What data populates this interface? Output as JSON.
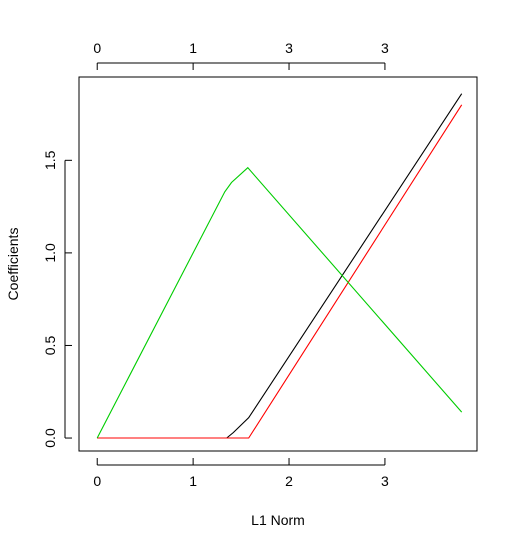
{
  "chart_data": {
    "type": "line",
    "title": "",
    "xlabel": "L1 Norm",
    "ylabel": "Coefficients",
    "xlim": [
      -0.19,
      3.96
    ],
    "ylim": [
      -0.07,
      1.95
    ],
    "x_ticks": [
      0,
      1,
      2,
      3
    ],
    "x_tick_labels": [
      "0",
      "1",
      "2",
      "3"
    ],
    "y_ticks": [
      0.0,
      0.5,
      1.0,
      1.5
    ],
    "y_tick_labels": [
      "0.0",
      "0.5",
      "1.0",
      "1.5"
    ],
    "top_axis": {
      "ticks": [
        0,
        1,
        2,
        3
      ],
      "labels": [
        "0",
        "1",
        "3",
        "3"
      ]
    },
    "grid": false,
    "legend": "none",
    "series": [
      {
        "color": "#000000",
        "points": [
          [
            0.0,
            0.0
          ],
          [
            1.35,
            0.0
          ],
          [
            1.42,
            0.03
          ],
          [
            1.58,
            0.11
          ],
          [
            3.8,
            1.86
          ]
        ]
      },
      {
        "color": "#ff0000",
        "points": [
          [
            0.0,
            0.0
          ],
          [
            1.58,
            0.0
          ],
          [
            3.8,
            1.8
          ]
        ]
      },
      {
        "color": "#00cd00",
        "points": [
          [
            0.0,
            0.0
          ],
          [
            1.33,
            1.33
          ],
          [
            1.4,
            1.38
          ],
          [
            1.57,
            1.46
          ],
          [
            3.8,
            0.14
          ]
        ]
      }
    ]
  }
}
